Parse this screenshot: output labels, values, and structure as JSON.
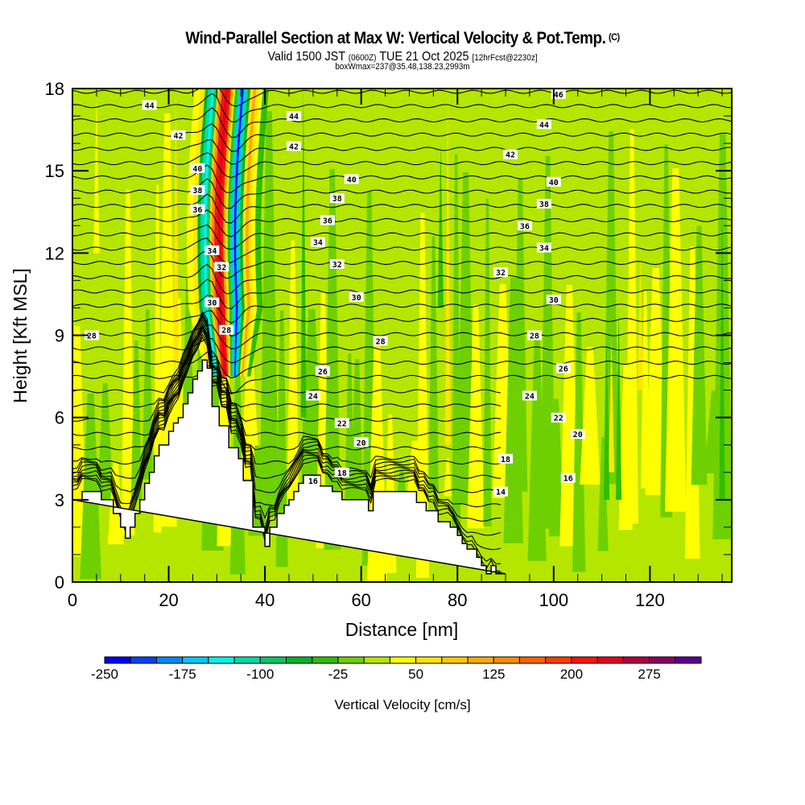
{
  "header": {
    "title": "Wind-Parallel Section at Max W: Vertical Velocity & Pot.Temp.",
    "copyright": "(C)",
    "valid_prefix": "Valid 1500 JST",
    "valid_utc": "(0600Z)",
    "valid_date": "TUE 21 Oct 2025",
    "forecast": "[12hrFcst@2230z]",
    "boxwmax": "boxWmax=237@35.48,138.23,2993m"
  },
  "chart_data": {
    "type": "heatmap",
    "title": "Wind-Parallel Section at Max W: Vertical Velocity & Pot.Temp.",
    "xlabel": "Distance [nm]",
    "ylabel": "Height [Kft MSL]",
    "xlim": [
      0,
      137
    ],
    "ylim": [
      0,
      18
    ],
    "x_ticks": [
      0,
      20,
      40,
      60,
      80,
      100,
      120
    ],
    "y_ticks": [
      0,
      3,
      6,
      9,
      12,
      15,
      18
    ],
    "x_minor_step": 5,
    "y_minor_step": 1,
    "colorbar": {
      "title": "Vertical Velocity [cm/s]",
      "levels": [
        -250,
        -225,
        -200,
        -175,
        -150,
        -125,
        -100,
        -75,
        -50,
        -25,
        0,
        25,
        50,
        75,
        100,
        125,
        150,
        175,
        200,
        225,
        250,
        275,
        300,
        325
      ],
      "tick_labels": [
        "-250",
        "-175",
        "-100",
        "-25",
        "50",
        "125",
        "200",
        "275"
      ],
      "colors": [
        "#0000ff",
        "#0044ff",
        "#0088ff",
        "#00c8ff",
        "#00f5e6",
        "#00dca0",
        "#00c864",
        "#00b428",
        "#30be00",
        "#6ed000",
        "#b4e600",
        "#ffff00",
        "#ffe600",
        "#ffc800",
        "#ffaa00",
        "#ff8c00",
        "#ff6400",
        "#ff3c00",
        "#ff1400",
        "#e6001e",
        "#b40040",
        "#8c0064",
        "#5a0096"
      ]
    },
    "max_w": {
      "value_cm_s": 237,
      "lat": 35.48,
      "lon": 138.23,
      "height_m": 2993
    },
    "theta_contour_interval": 2,
    "theta_contour_labels": [
      {
        "value": 44,
        "x_nm": 16,
        "z_kft": 17.4
      },
      {
        "value": 42,
        "x_nm": 22,
        "z_kft": 16.3
      },
      {
        "value": 40,
        "x_nm": 26,
        "z_kft": 15.1
      },
      {
        "value": 38,
        "x_nm": 26,
        "z_kft": 14.3
      },
      {
        "value": 36,
        "x_nm": 26,
        "z_kft": 13.6
      },
      {
        "value": 34,
        "x_nm": 29,
        "z_kft": 12.1
      },
      {
        "value": 32,
        "x_nm": 31,
        "z_kft": 11.5
      },
      {
        "value": 30,
        "x_nm": 29,
        "z_kft": 10.2
      },
      {
        "value": 28,
        "x_nm": 32,
        "z_kft": 9.2
      },
      {
        "value": 28,
        "x_nm": 4,
        "z_kft": 9.0
      },
      {
        "value": 44,
        "x_nm": 46,
        "z_kft": 17.0
      },
      {
        "value": 42,
        "x_nm": 46,
        "z_kft": 15.9
      },
      {
        "value": 40,
        "x_nm": 58,
        "z_kft": 14.7
      },
      {
        "value": 38,
        "x_nm": 55,
        "z_kft": 14.0
      },
      {
        "value": 36,
        "x_nm": 53,
        "z_kft": 13.2
      },
      {
        "value": 34,
        "x_nm": 51,
        "z_kft": 12.4
      },
      {
        "value": 32,
        "x_nm": 55,
        "z_kft": 11.6
      },
      {
        "value": 30,
        "x_nm": 59,
        "z_kft": 10.4
      },
      {
        "value": 28,
        "x_nm": 64,
        "z_kft": 8.8
      },
      {
        "value": 26,
        "x_nm": 52,
        "z_kft": 7.7
      },
      {
        "value": 24,
        "x_nm": 50,
        "z_kft": 6.8
      },
      {
        "value": 22,
        "x_nm": 56,
        "z_kft": 5.8
      },
      {
        "value": 20,
        "x_nm": 60,
        "z_kft": 5.1
      },
      {
        "value": 18,
        "x_nm": 56,
        "z_kft": 4.0
      },
      {
        "value": 16,
        "x_nm": 50,
        "z_kft": 3.7
      },
      {
        "value": 46,
        "x_nm": 101,
        "z_kft": 17.8
      },
      {
        "value": 44,
        "x_nm": 98,
        "z_kft": 16.7
      },
      {
        "value": 42,
        "x_nm": 91,
        "z_kft": 15.6
      },
      {
        "value": 40,
        "x_nm": 100,
        "z_kft": 14.6
      },
      {
        "value": 38,
        "x_nm": 98,
        "z_kft": 13.8
      },
      {
        "value": 36,
        "x_nm": 94,
        "z_kft": 13.0
      },
      {
        "value": 34,
        "x_nm": 98,
        "z_kft": 12.2
      },
      {
        "value": 32,
        "x_nm": 89,
        "z_kft": 11.3
      },
      {
        "value": 30,
        "x_nm": 100,
        "z_kft": 10.3
      },
      {
        "value": 28,
        "x_nm": 96,
        "z_kft": 9.0
      },
      {
        "value": 26,
        "x_nm": 102,
        "z_kft": 7.8
      },
      {
        "value": 24,
        "x_nm": 95,
        "z_kft": 6.8
      },
      {
        "value": 22,
        "x_nm": 101,
        "z_kft": 6.0
      },
      {
        "value": 20,
        "x_nm": 105,
        "z_kft": 5.4
      },
      {
        "value": 18,
        "x_nm": 90,
        "z_kft": 4.5
      },
      {
        "value": 16,
        "x_nm": 103,
        "z_kft": 3.8
      },
      {
        "value": 14,
        "x_nm": 89,
        "z_kft": 3.3
      }
    ],
    "terrain_profile": {
      "x_nm": [
        0,
        2,
        2,
        6,
        6,
        8.5,
        8.5,
        10,
        10,
        11,
        11,
        12,
        12,
        13,
        13,
        14,
        14,
        15,
        15,
        16,
        16,
        17,
        17,
        18,
        18,
        20,
        20,
        21,
        21,
        22,
        22,
        23,
        23,
        24,
        24,
        25,
        25,
        26,
        26,
        27,
        27,
        28,
        28,
        29,
        29,
        30.5,
        30.5,
        31.5,
        31.5,
        32.5,
        32.5,
        34.5,
        34.5,
        35.5,
        35.5,
        37.5,
        37.5,
        40,
        40,
        41,
        41,
        42.5,
        42.5,
        44,
        44,
        45,
        45,
        46,
        46,
        47,
        47,
        48,
        48,
        50,
        50,
        51.5,
        51.5,
        54,
        54,
        56,
        56,
        61.5,
        61.5,
        62.5,
        62.5,
        66,
        66,
        71.5,
        71.5,
        73.5,
        73.5,
        76,
        76,
        78.5,
        78.5,
        80,
        80,
        81,
        81,
        82,
        82,
        84,
        84,
        85,
        85,
        86,
        86,
        87,
        87,
        88,
        88,
        90,
        90,
        137
      ],
      "z_kft": [
        3.0,
        3.0,
        3.3,
        3.3,
        3.0,
        3.0,
        2.5,
        2.5,
        2.0,
        2.0,
        1.6,
        1.6,
        2.0,
        2.0,
        2.5,
        2.5,
        3.0,
        3.0,
        3.6,
        3.6,
        4.0,
        4.0,
        4.6,
        4.6,
        5.0,
        5.0,
        5.5,
        5.5,
        5.8,
        5.8,
        6.0,
        6.0,
        6.5,
        6.5,
        6.9,
        6.9,
        7.4,
        7.4,
        7.7,
        7.7,
        8.1,
        8.1,
        7.8,
        7.8,
        6.4,
        6.4,
        5.7,
        5.7,
        5.7,
        5.7,
        4.9,
        4.9,
        4.5,
        4.5,
        3.7,
        3.7,
        2.0,
        2.0,
        1.3,
        1.3,
        2.0,
        2.0,
        2.5,
        2.5,
        2.8,
        2.8,
        3.0,
        3.0,
        3.3,
        3.3,
        3.6,
        3.6,
        3.9,
        3.9,
        3.9,
        3.9,
        3.5,
        3.5,
        3.3,
        3.3,
        3.0,
        3.0,
        2.6,
        2.6,
        3.3,
        3.3,
        3.3,
        3.3,
        2.9,
        2.9,
        2.6,
        2.6,
        2.2,
        2.2,
        2.0,
        2.0,
        1.7,
        1.7,
        1.4,
        1.4,
        1.2,
        1.2,
        0.9,
        0.9,
        0.6,
        0.6,
        0.3,
        0.3,
        0.6,
        0.6,
        0.3,
        0.3,
        0.3
      ]
    }
  }
}
